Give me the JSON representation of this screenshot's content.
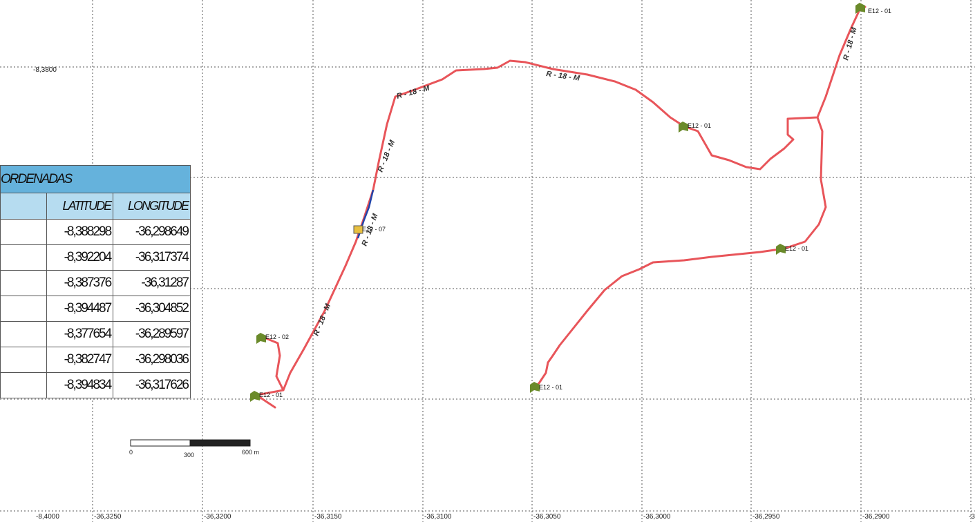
{
  "map": {
    "left_axis_labels": [
      "-8,3800",
      "-8,4000"
    ],
    "bottom_axis_labels": [
      "-36,3250",
      "-36,3200",
      "-36,3150",
      "-36,3100",
      "-36,3050",
      "-36,3000",
      "-36,2950",
      "-36,2900",
      "-3"
    ],
    "route_labels": [
      "R - 18 - M",
      "R - 18 - M",
      "R - 18 - M",
      "R - 18 - M",
      "R - 18 - M",
      "R - 18 - M",
      "R. 18 - M"
    ],
    "markers": [
      "E12 - 01",
      "E12 - 01",
      "E12 - 01",
      "E12 - 07",
      "E12 - 02",
      "E12 - 01",
      "E12 - 01"
    ],
    "scale_bar": {
      "labels": [
        "0",
        "300",
        "600 m"
      ]
    },
    "colors": {
      "route": "#e8555a",
      "route_segment": "#2244aa",
      "marker": "#6a8a2a",
      "grid": "#555555"
    }
  },
  "table": {
    "title": "ORDENADAS",
    "headers": [
      "",
      "LATITUDE",
      "LONGITUDE"
    ],
    "rows": [
      {
        "idx": "",
        "lat": "-8,388298",
        "lon": "-36,298649"
      },
      {
        "idx": "",
        "lat": "-8,392204",
        "lon": "-36,317374"
      },
      {
        "idx": "",
        "lat": "-8,387376",
        "lon": "-36,31287"
      },
      {
        "idx": "",
        "lat": "-8,394487",
        "lon": "-36,304852"
      },
      {
        "idx": "",
        "lat": "-8,377654",
        "lon": "-36,289597"
      },
      {
        "idx": "",
        "lat": "-8,382747",
        "lon": "-36,298036"
      },
      {
        "idx": "",
        "lat": "-8,394834",
        "lon": "-36,317626"
      }
    ],
    "colors": {
      "title_bg": "#65b2dc",
      "header_bg": "#b6dcf0"
    }
  }
}
